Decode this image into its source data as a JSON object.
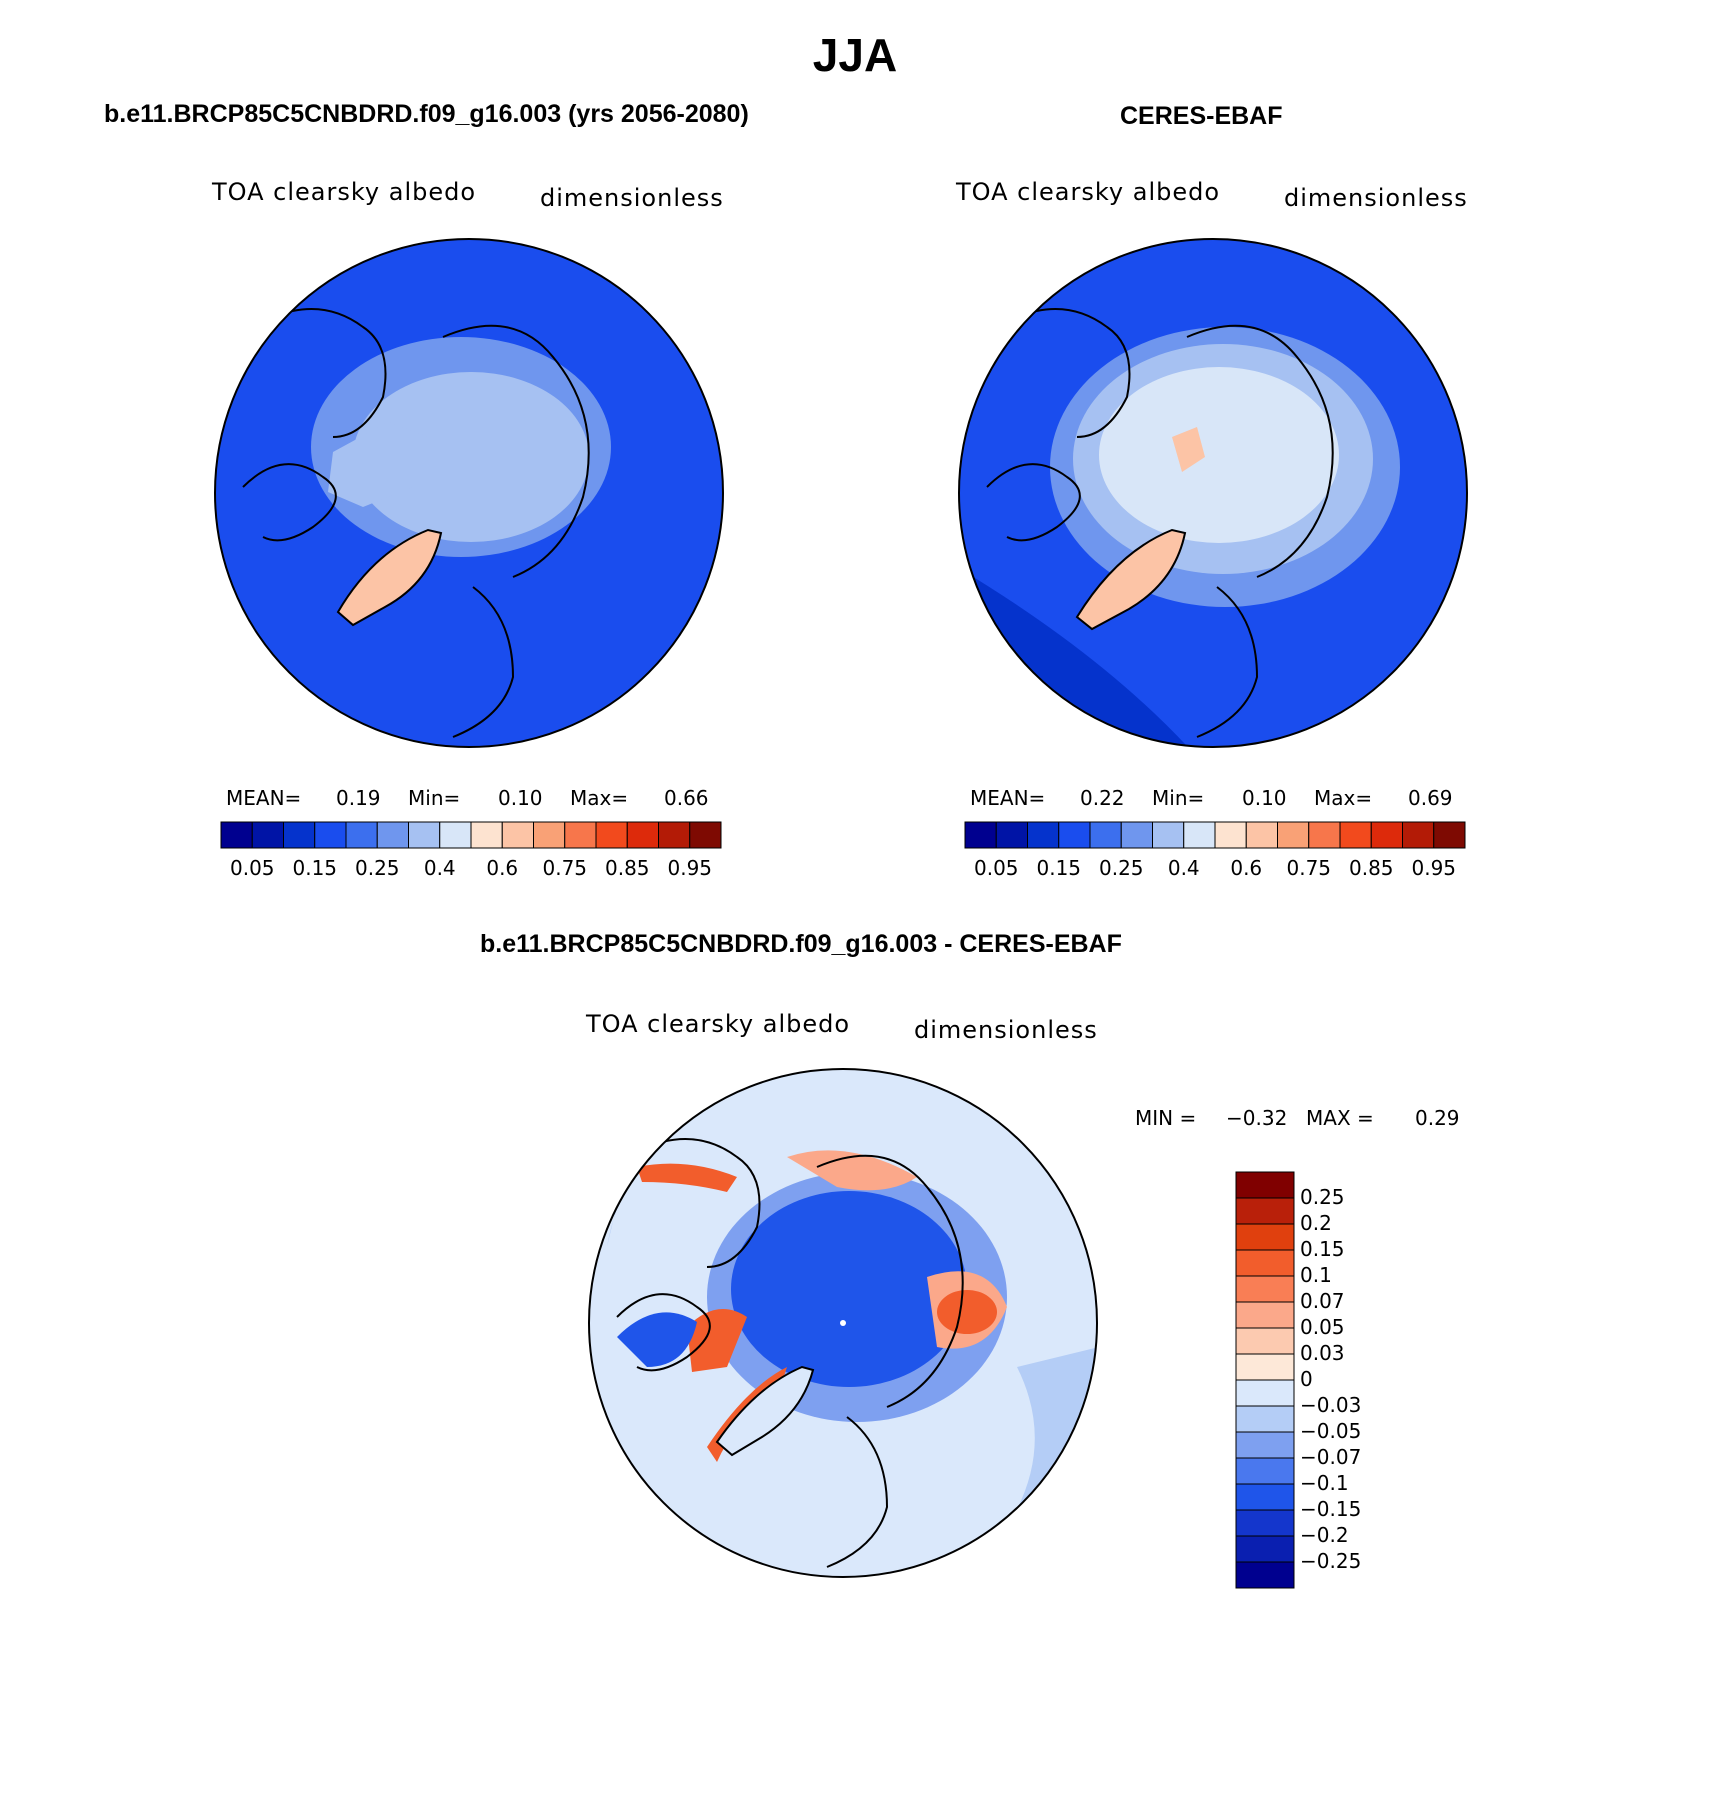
{
  "figure": {
    "season": "JJA"
  },
  "panels": [
    {
      "title": "b.e11.BRCP85C5CNBDRD.f09_g16.003 (yrs 2056-2080)",
      "variable": "TOA clearsky albedo",
      "units": "dimensionless",
      "stats": {
        "mean_label": "MEAN=",
        "mean": "0.19",
        "min_label": "Min=",
        "min": "0.10",
        "max_label": "Max=",
        "max": "0.66"
      }
    },
    {
      "title": "CERES-EBAF",
      "variable": "TOA clearsky albedo",
      "units": "dimensionless",
      "stats": {
        "mean_label": "MEAN=",
        "mean": "0.22",
        "min_label": "Min=",
        "min": "0.10",
        "max_label": "Max=",
        "max": "0.69"
      }
    },
    {
      "title": "b.e11.BRCP85C5CNBDRD.f09_g16.003 - CERES-EBAF",
      "variable": "TOA clearsky albedo",
      "units": "dimensionless",
      "stats": {
        "min_label": "MIN =",
        "min": "−0.32",
        "max_label": "MAX =",
        "max": "0.29"
      }
    }
  ],
  "colorbars": {
    "absolute": {
      "colors": [
        "#00008f",
        "#0014a6",
        "#0533cc",
        "#1a4dee",
        "#3c6fee",
        "#6f96ee",
        "#a6c1f2",
        "#d8e6f8",
        "#fde3d0",
        "#fcc4a6",
        "#f9a176",
        "#f7764b",
        "#f24a1d",
        "#dd2a0b",
        "#b31b06",
        "#7e0a02"
      ],
      "tick_labels": [
        "0.05",
        "0.15",
        "0.25",
        "0.4",
        "0.6",
        "0.75",
        "0.85",
        "0.95"
      ]
    },
    "difference": {
      "colors": [
        "#00008f",
        "#0a1fb0",
        "#1436cc",
        "#1f55ea",
        "#4a78ee",
        "#7ea0f0",
        "#b4cdf6",
        "#dae8fb",
        "#fde8d8",
        "#fccab0",
        "#fba88a",
        "#f97e55",
        "#f25d2c",
        "#e0400e",
        "#b9200a",
        "#800000"
      ],
      "tick_labels_top_to_bottom": [
        "0.25",
        "0.2",
        "0.15",
        "0.1",
        "0.07",
        "0.05",
        "0.03",
        "0",
        "−0.03",
        "−0.05",
        "−0.07",
        "−0.1",
        "−0.15",
        "−0.2",
        "−0.25"
      ]
    }
  },
  "map_colors": {
    "ocean_model": "#1a4dee",
    "ocean_dark": "#0533cc",
    "ice_light": "#a6c1f2",
    "ice_lighter": "#d8e6f8",
    "greenland": "#fcc4a6",
    "diff_background": "#dae8fb",
    "diff_blue_light": "#b4cdf6",
    "diff_blue_mid": "#7ea0f0",
    "diff_blue_strong": "#1f55ea",
    "diff_red": "#f25d2c",
    "diff_orange": "#fba88a",
    "coast": "#000000"
  }
}
